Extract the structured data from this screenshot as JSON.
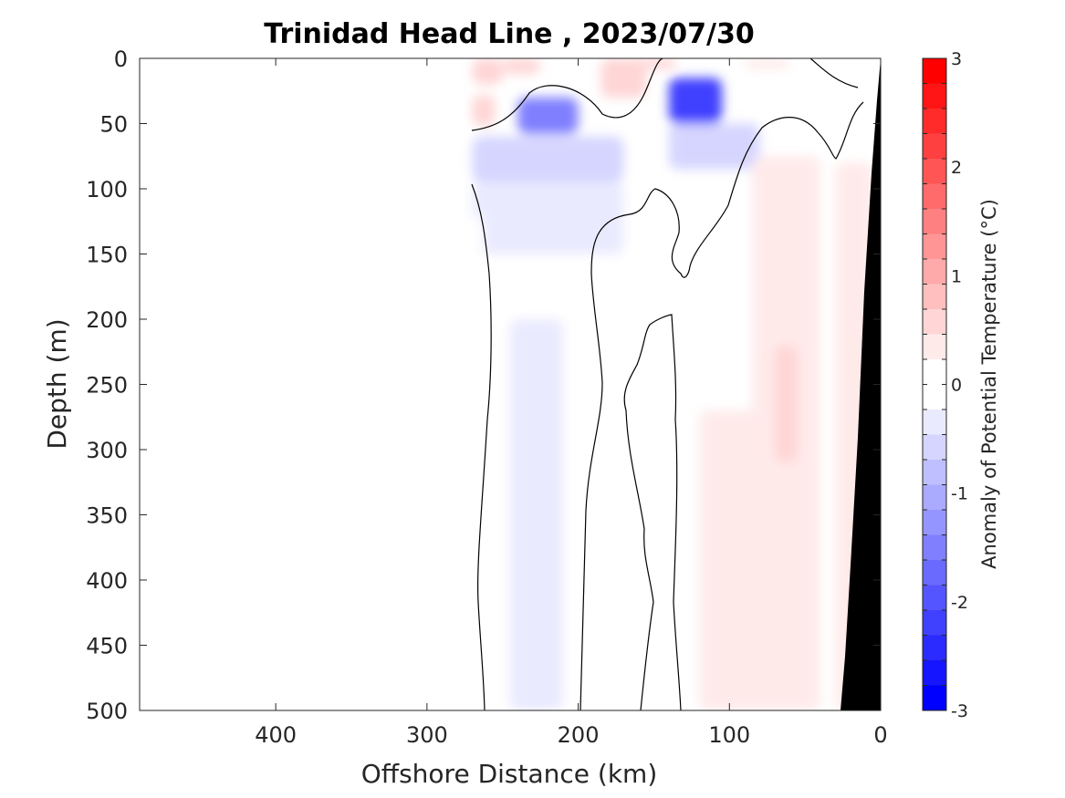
{
  "chart_data": {
    "type": "heatmap",
    "title": "Trinidad Head Line , 2023/07/30",
    "xlabel": "Offshore Distance (km)",
    "ylabel": "Depth (m)",
    "xlim": [
      490,
      0
    ],
    "ylim": [
      0,
      500
    ],
    "x_reversed": true,
    "y_reversed": true,
    "x_ticks": [
      400,
      300,
      200,
      100,
      0
    ],
    "x_tick_labels": [
      "400",
      "300",
      "200",
      "100",
      "0"
    ],
    "y_ticks": [
      0,
      50,
      100,
      150,
      200,
      250,
      300,
      350,
      400,
      450,
      500
    ],
    "y_tick_labels": [
      "0",
      "50",
      "100",
      "150",
      "200",
      "250",
      "300",
      "350",
      "400",
      "450",
      "500"
    ],
    "grid": false,
    "colorbar": {
      "label": "Anomaly of Potential Temperature (°C)",
      "range": [
        -3,
        3
      ],
      "step": 0.25,
      "tick_values": [
        3,
        2,
        1,
        0,
        -1,
        -2,
        -3
      ],
      "tick_labels": [
        "3",
        "2",
        "1",
        "0",
        "-1",
        "-2",
        "-3"
      ],
      "colors_top_to_bottom": [
        "#ff0000",
        "#ff1515",
        "#ff2b2b",
        "#ff4040",
        "#ff5555",
        "#ff6a6a",
        "#ff8080",
        "#ff9595",
        "#ffaaaa",
        "#ffbfbf",
        "#ffd5d5",
        "#ffeaea",
        "#ffffff",
        "#ffffff",
        "#eaeaff",
        "#d5d5ff",
        "#bfbfff",
        "#aaaaff",
        "#9595ff",
        "#8080ff",
        "#6a6aff",
        "#5555ff",
        "#4040ff",
        "#2b2bff",
        "#1515ff",
        "#0000ff"
      ]
    },
    "contour_level": 0,
    "data_extent_km": [
      0,
      270
    ],
    "bottom_fill_color": "#000000",
    "cells": [
      {
        "x": [
          250,
          270
        ],
        "y": [
          0,
          20
        ],
        "value": 0.6
      },
      {
        "x": [
          225,
          250
        ],
        "y": [
          0,
          12
        ],
        "value": 0.5
      },
      {
        "x": [
          155,
          185
        ],
        "y": [
          0,
          30
        ],
        "value": 0.5
      },
      {
        "x": [
          135,
          160
        ],
        "y": [
          0,
          8
        ],
        "value": 0.5
      },
      {
        "x": [
          255,
          270
        ],
        "y": [
          28,
          52
        ],
        "value": 0.6
      },
      {
        "x": [
          60,
          90
        ],
        "y": [
          0,
          8
        ],
        "value": 0.3
      },
      {
        "x": [
          200,
          240
        ],
        "y": [
          30,
          58
        ],
        "value": -1.6
      },
      {
        "x": [
          105,
          140
        ],
        "y": [
          15,
          50
        ],
        "value": -2.2
      },
      {
        "x": [
          80,
          140
        ],
        "y": [
          50,
          85
        ],
        "value": -0.6
      },
      {
        "x": [
          170,
          270
        ],
        "y": [
          60,
          95
        ],
        "value": -0.5
      },
      {
        "x": [
          170,
          270
        ],
        "y": [
          95,
          150
        ],
        "value": -0.3
      },
      {
        "x": [
          210,
          245
        ],
        "y": [
          200,
          500
        ],
        "value": -0.3
      },
      {
        "x": [
          40,
          85
        ],
        "y": [
          75,
          500
        ],
        "value": 0.3
      },
      {
        "x": [
          70,
          120
        ],
        "y": [
          270,
          500
        ],
        "value": 0.3
      },
      {
        "x": [
          5,
          30
        ],
        "y": [
          80,
          500
        ],
        "value": 0.3
      },
      {
        "x": [
          55,
          70
        ],
        "y": [
          220,
          310
        ],
        "value": 0.55
      },
      {
        "x": [
          263,
          270
        ],
        "y": [
          120,
          390
        ],
        "value": 0.2
      }
    ]
  }
}
